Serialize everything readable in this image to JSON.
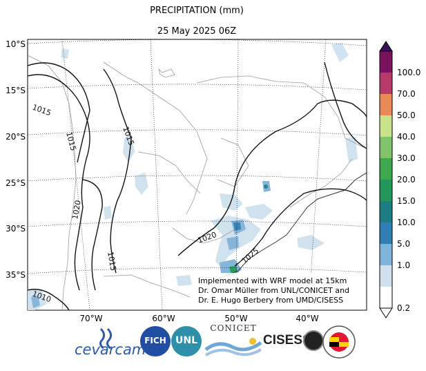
{
  "title": "PRECIPITATION (mm)",
  "subtitle": "25 May 2025 06Z",
  "lat_ticks": [
    "10°S",
    "15°S",
    "20°S",
    "25°S",
    "30°S",
    "35°S"
  ],
  "lon_ticks": [
    "70°W",
    "60°W",
    "50°W",
    "40°W"
  ],
  "colorbar": {
    "labels": [
      "0.2",
      "1.0",
      "5.0",
      "10.0",
      "15.0",
      "20.0",
      "30.0",
      "40.0",
      "50.0",
      "70.0",
      "100.0"
    ],
    "colors": [
      "#ffffff",
      "#cfe1ef",
      "#7fb3d9",
      "#2f7fb5",
      "#1c7e82",
      "#23975a",
      "#3da84e",
      "#80c36a",
      "#c9e38c",
      "#e88a57",
      "#b83a6b",
      "#7a1260",
      "#3a0f5c"
    ]
  },
  "isobar_labels": [
    "1015",
    "1015",
    "1015",
    "1020",
    "1015",
    "1020",
    "1025",
    "1010"
  ],
  "credits": {
    "line1": "Implemented with WRF model at 15km",
    "line2": "Dr. Omar Müller from UNL/CONICET and",
    "line3": "Dr. E. Hugo Berbery from UMD/CISESS"
  },
  "logos": {
    "cevarcam": "cevarcam",
    "fich": "FICH",
    "unl": "UNL",
    "conicet": "CONICET",
    "cisess": "CISESS",
    "umd_seal": "UNIVERSITY OF MARYLAND"
  }
}
